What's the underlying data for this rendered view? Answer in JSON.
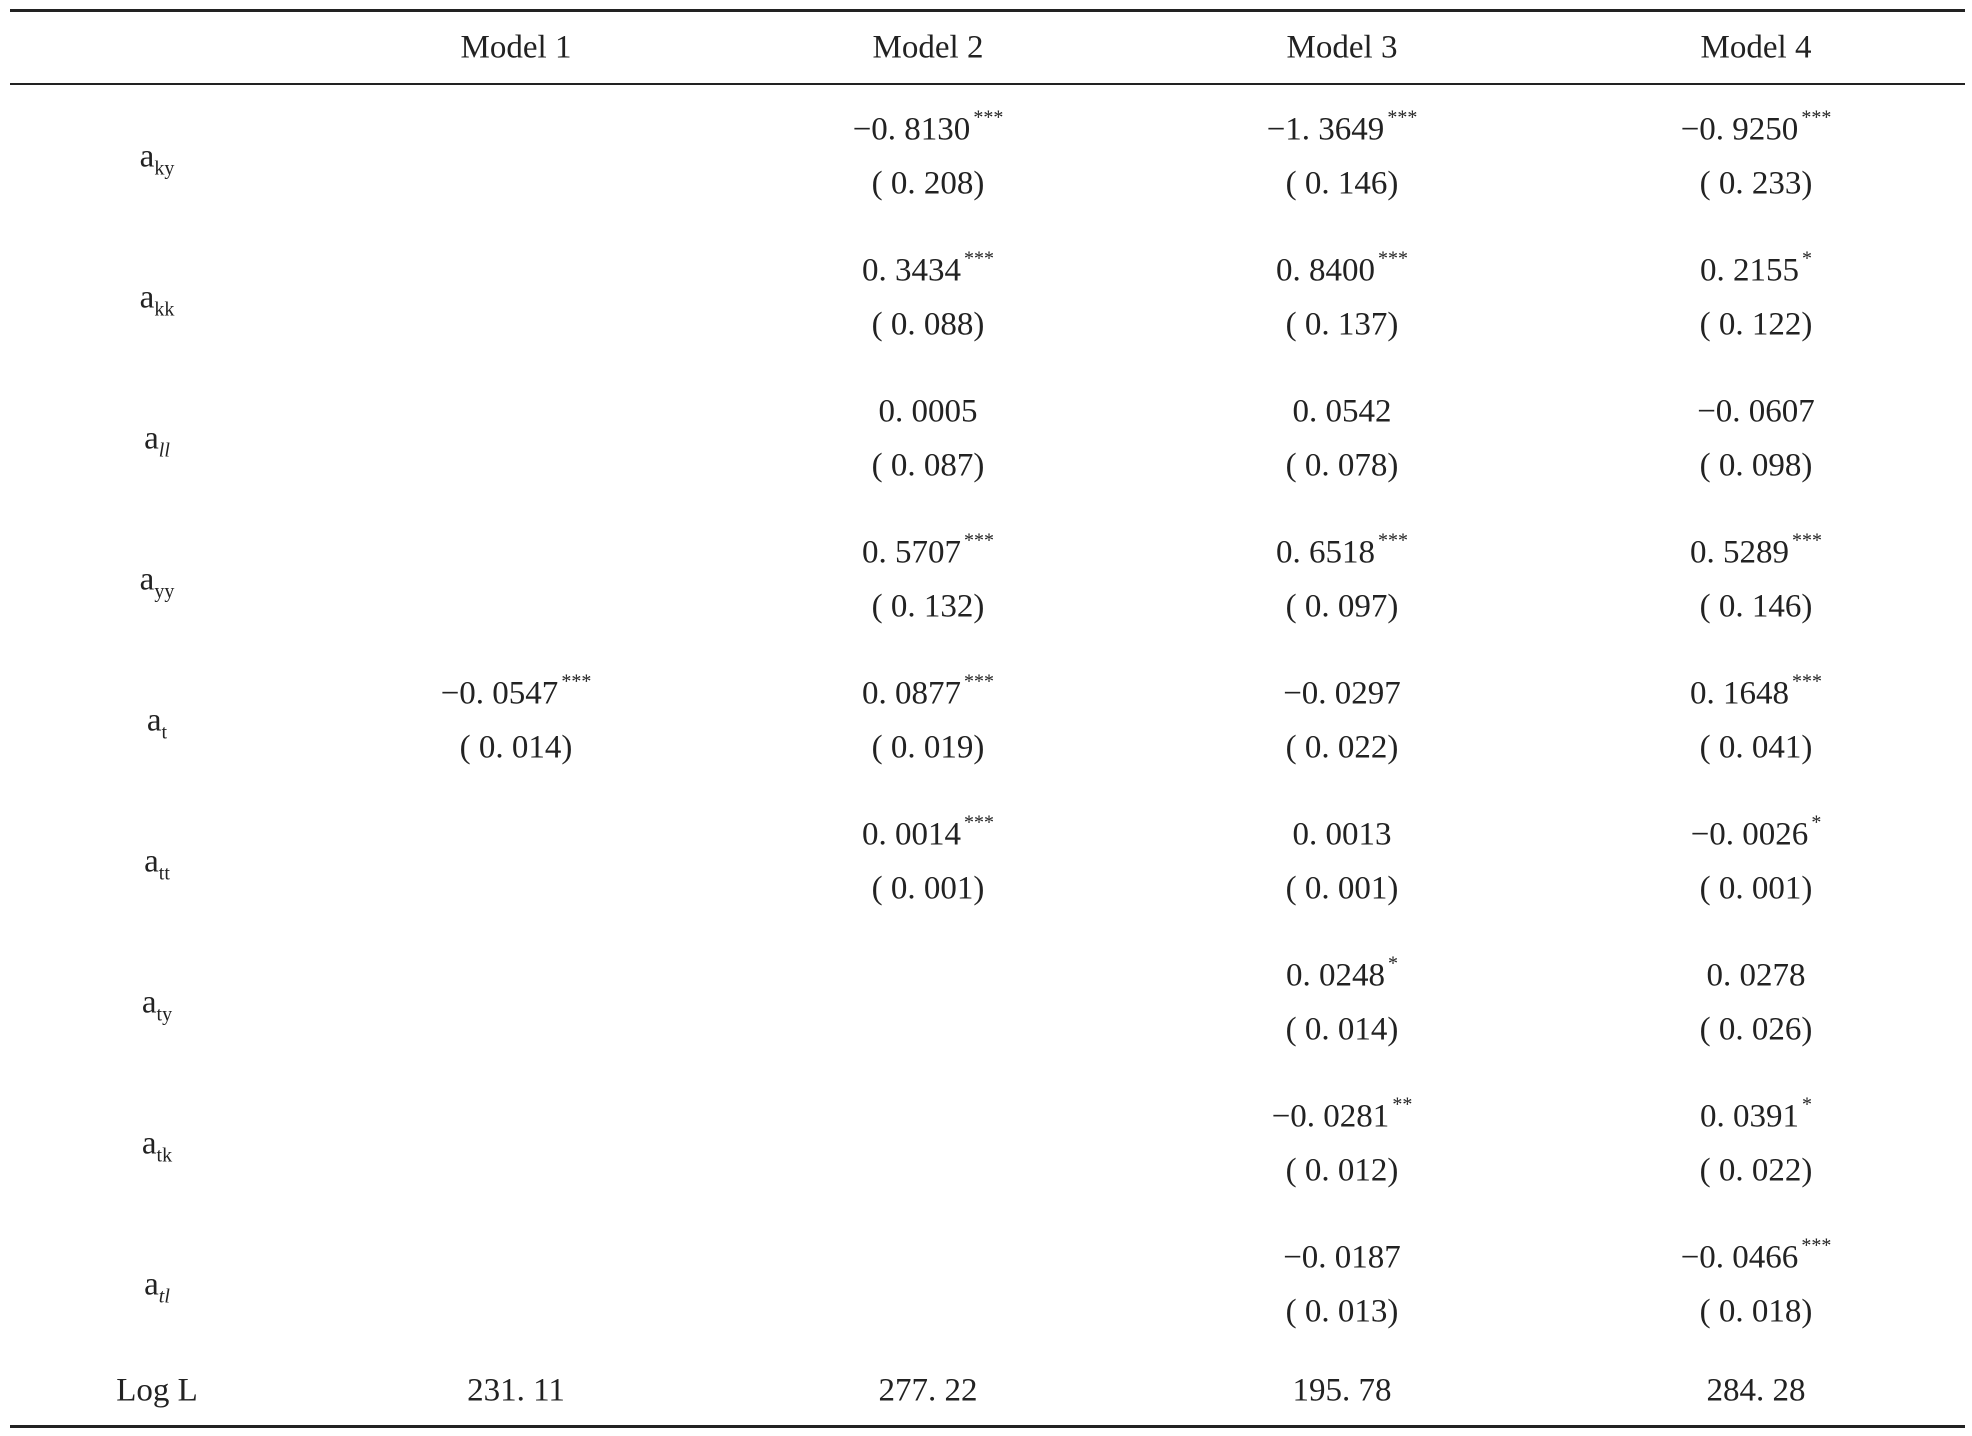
{
  "table": {
    "header": [
      "Model 1",
      "Model 2",
      "Model 3",
      "Model 4"
    ],
    "rows": [
      {
        "label": {
          "base": "a",
          "sub": "ky"
        },
        "cells": [
          null,
          {
            "coef": "−0. 8130",
            "stars": "***",
            "se": "( 0. 208)"
          },
          {
            "coef": "−1. 3649",
            "stars": "***",
            "se": "( 0. 146)"
          },
          {
            "coef": "−0. 9250",
            "stars": "***",
            "se": "( 0. 233)"
          }
        ]
      },
      {
        "label": {
          "base": "a",
          "sub": "kk"
        },
        "cells": [
          null,
          {
            "coef": "0. 3434",
            "stars": "***",
            "se": "( 0. 088)"
          },
          {
            "coef": "0. 8400",
            "stars": "***",
            "se": "( 0. 137)"
          },
          {
            "coef": "0. 2155",
            "stars": "*",
            "se": "( 0. 122)"
          }
        ]
      },
      {
        "label": {
          "base": "a",
          "sub": "ll",
          "italic": true
        },
        "cells": [
          null,
          {
            "coef": "0. 0005",
            "se": "( 0. 087)"
          },
          {
            "coef": "0. 0542",
            "se": "( 0. 078)"
          },
          {
            "coef": "−0. 0607",
            "se": "( 0. 098)"
          }
        ]
      },
      {
        "label": {
          "base": "a",
          "sub": "yy"
        },
        "cells": [
          null,
          {
            "coef": "0. 5707",
            "stars": "***",
            "se": "( 0. 132)"
          },
          {
            "coef": "0. 6518",
            "stars": "***",
            "se": "( 0. 097)"
          },
          {
            "coef": "0. 5289",
            "stars": "***",
            "se": "( 0. 146)"
          }
        ]
      },
      {
        "label": {
          "base": "a",
          "sub": "t"
        },
        "cells": [
          {
            "coef": "−0. 0547",
            "stars": "***",
            "se": "( 0. 014)"
          },
          {
            "coef": "0. 0877",
            "stars": "***",
            "se": "( 0. 019)"
          },
          {
            "coef": "−0. 0297",
            "se": "( 0. 022)"
          },
          {
            "coef": "0. 1648",
            "stars": "***",
            "se": "( 0. 041)"
          }
        ]
      },
      {
        "label": {
          "base": "a",
          "sub": "tt"
        },
        "cells": [
          null,
          {
            "coef": "0. 0014",
            "stars": "***",
            "se": "( 0. 001)"
          },
          {
            "coef": "0. 0013",
            "se": "( 0. 001)"
          },
          {
            "coef": "−0. 0026",
            "stars": "*",
            "se": "( 0. 001)"
          }
        ]
      },
      {
        "label": {
          "base": "a",
          "sub": "ty"
        },
        "cells": [
          null,
          null,
          {
            "coef": "0. 0248",
            "stars": "*",
            "se": "( 0. 014)"
          },
          {
            "coef": "0. 0278",
            "se": "( 0. 026)"
          }
        ]
      },
      {
        "label": {
          "base": "a",
          "sub": "tk"
        },
        "cells": [
          null,
          null,
          {
            "coef": "−0. 0281",
            "stars": "**",
            "se": "( 0. 012)"
          },
          {
            "coef": "0. 0391",
            "stars": "*",
            "se": "( 0. 022)"
          }
        ]
      },
      {
        "label": {
          "base": "a",
          "sub": "tl",
          "italic": true
        },
        "cells": [
          null,
          null,
          {
            "coef": "−0. 0187",
            "se": "( 0. 013)"
          },
          {
            "coef": "−0. 0466",
            "stars": "***",
            "se": "( 0. 018)"
          }
        ]
      }
    ],
    "footer": {
      "label": "Log L",
      "values": [
        "231. 11",
        "277. 22",
        "195. 78",
        "284. 28"
      ]
    }
  }
}
